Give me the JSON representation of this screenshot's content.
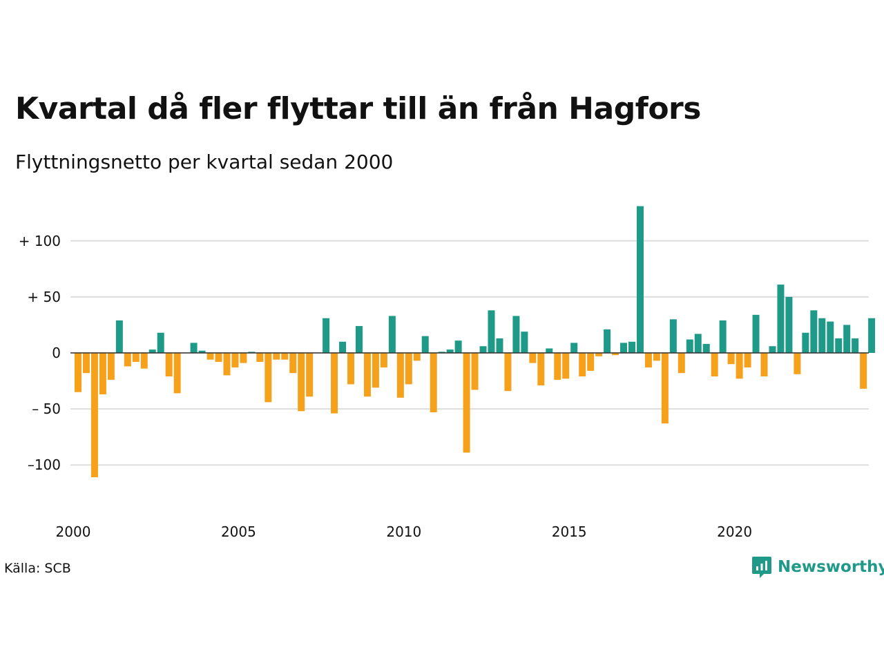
{
  "title": "Kvartal då fler flyttar till än från Hagfors",
  "subtitle": "Flyttningsnetto per kvartal sedan 2000",
  "source": "Källa: SCB",
  "brand": {
    "name": "Newsworthy",
    "icon": "newsworthy-logo-icon",
    "color": "#1f9a88"
  },
  "colors": {
    "positive": "#1f9a88",
    "negative": "#f5a11b",
    "grid": "#dddddd"
  },
  "chart_data": {
    "type": "bar",
    "title": "Kvartal då fler flyttar till än från Hagfors",
    "subtitle": "Flyttningsnetto per kvartal sedan 2000",
    "x_start_year": 2000,
    "periods_per_year": 4,
    "ylim": [
      -115,
      135
    ],
    "y_ticks": [
      {
        "value": 100,
        "label": "+ 100"
      },
      {
        "value": 50,
        "label": "+  50"
      },
      {
        "value": 0,
        "label": "0"
      },
      {
        "value": -50,
        "label": "– 50"
      },
      {
        "value": -100,
        "label": "–100"
      }
    ],
    "x_ticks": [
      {
        "year": 2000,
        "label": "2000"
      },
      {
        "year": 2005,
        "label": "2005"
      },
      {
        "year": 2010,
        "label": "2010"
      },
      {
        "year": 2015,
        "label": "2015"
      },
      {
        "year": 2020,
        "label": "2020"
      }
    ],
    "grid": true,
    "legend": "none",
    "values": [
      -35,
      -18,
      -111,
      -37,
      -24,
      29,
      -12,
      -8,
      -14,
      3,
      18,
      -21,
      -36,
      0,
      9,
      2,
      -6,
      -8,
      -20,
      -13,
      -9,
      1,
      -8,
      -44,
      -6,
      -6,
      -18,
      -52,
      -39,
      0,
      31,
      -54,
      10,
      -28,
      24,
      -39,
      -31,
      -13,
      33,
      -40,
      -28,
      -7,
      15,
      -53,
      1,
      3,
      11,
      -89,
      -33,
      6,
      38,
      13,
      -34,
      33,
      19,
      -9,
      -29,
      4,
      -24,
      -23,
      9,
      -21,
      -16,
      -3,
      21,
      -2,
      9,
      10,
      131,
      -13,
      -7,
      -63,
      30,
      -18,
      12,
      17,
      8,
      -21,
      29,
      -10,
      -23,
      -13,
      34,
      -21,
      6,
      61,
      50,
      -19,
      18,
      38,
      31,
      28,
      13,
      25,
      13,
      -32,
      31
    ]
  }
}
